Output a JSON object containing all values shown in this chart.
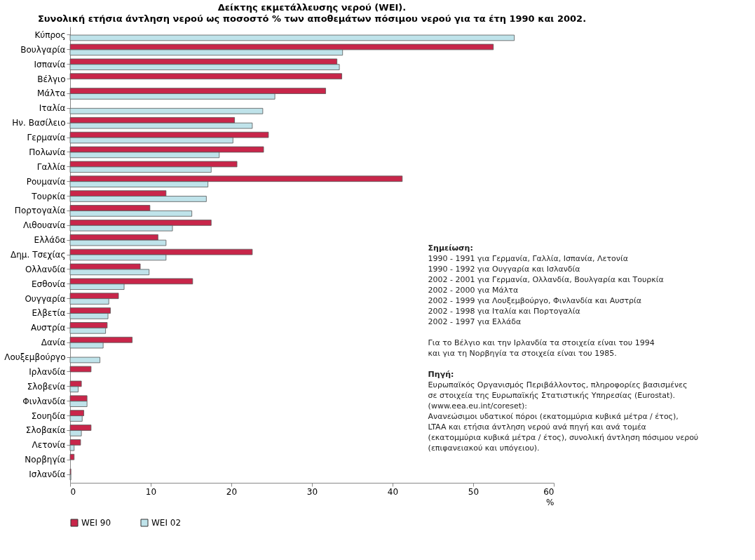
{
  "chart_data": {
    "type": "bar",
    "orientation": "horizontal",
    "title": "Δείκτης εκμετάλλευσης νερού (WEI).",
    "subtitle": "Συνολική ετήσια άντληση νερού ως ποσοστό % των αποθεμάτων πόσιμου νερού για τα έτη 1990 και 2002.",
    "xlabel": "%",
    "categories": [
      "Κύπρος",
      "Βουλγαρία",
      "Ισπανία",
      "Βέλγιο",
      "Μάλτα",
      "Ιταλία",
      "Ην. Βασίλειο",
      "Γερμανία",
      "Πολωνία",
      "Γαλλία",
      "Ρουμανία",
      "Τουρκία",
      "Πορτογαλία",
      "Λιθουανία",
      "Ελλάδα",
      "Δημ. Τσεχίας",
      "Ολλανδία",
      "Εσθονία",
      "Ουγγαρία",
      "Ελβετία",
      "Αυστρία",
      "Δανία",
      "Λουξεμβούργο",
      "Ιρλανδία",
      "Σλοβενία",
      "Φινλανδία",
      "Σουηδία",
      "Σλοβακία",
      "Λετονία",
      "Νορβηγία",
      "Ισλανδία"
    ],
    "series": [
      {
        "name": "WEI 90",
        "color": "#c8264a",
        "values": [
          null,
          52.5,
          33.1,
          33.7,
          31.7,
          null,
          20.4,
          24.6,
          24.0,
          20.7,
          41.2,
          11.9,
          9.9,
          17.5,
          10.9,
          22.6,
          8.7,
          15.2,
          6.0,
          5.0,
          4.6,
          7.7,
          null,
          2.6,
          1.4,
          2.1,
          1.7,
          2.6,
          1.3,
          0.5,
          0.1
        ]
      },
      {
        "name": "WEI 02",
        "color": "#bfe3ea",
        "values": [
          55.1,
          33.8,
          33.4,
          null,
          25.4,
          23.9,
          22.6,
          20.2,
          18.5,
          17.5,
          17.1,
          16.9,
          15.1,
          12.7,
          11.9,
          11.9,
          9.8,
          6.7,
          4.8,
          4.7,
          4.4,
          4.1,
          3.7,
          null,
          1.0,
          2.1,
          1.5,
          1.4,
          0.5,
          null,
          0.1
        ]
      }
    ],
    "xlim": [
      0,
      60
    ],
    "xticks": [
      0,
      10,
      20,
      30,
      40,
      50,
      60
    ],
    "grid": false,
    "legend": "bottom",
    "annotations": [
      "Σημείωση:",
      "1990 - 1991 για Γερμανία, Γαλλία, Ισπανία, Λετονία\n1990 - 1992 για Ουγγαρία και Ισλανδία\n2002 - 2001 για Γερμανία, Ολλανδία, Βουλγαρία και Τουρκία\n2002 - 2000 για Μάλτα\n2002 - 1999 για Λουξεμβούργο, Φινλανδία και Αυστρία\n2002 - 1998 για Ιταλία και Πορτογαλία\n2002 - 1997 για Ελλάδα",
      "Για το Βέλγιο και την Ιρλανδία τα στοιχεία είναι του 1994\nκαι για τη Νορβηγία τα στοιχεία είναι του 1985.",
      "Πηγή:",
      "Ευρωπαϊκός Οργανισμός Περιβάλλοντος, πληροφορίες βασισμένες\nσε στοιχεία της Ευρωπαϊκής Στατιστικής Υπηρεσίας (Eurostat).\n(www.eea.eu.int/coreset):\nΑνανεώσιμοι υδατικοί πόροι (εκατομμύρια κυβικά μέτρα / έτος),\nLTAA και ετήσια άντληση νερού ανά πηγή και ανά τομέα\n(εκατομμύρια κυβικά μέτρα / έτος), συνολική άντληση πόσιμου νερού\n(επιφανειακού και υπόγειου)."
    ]
  }
}
